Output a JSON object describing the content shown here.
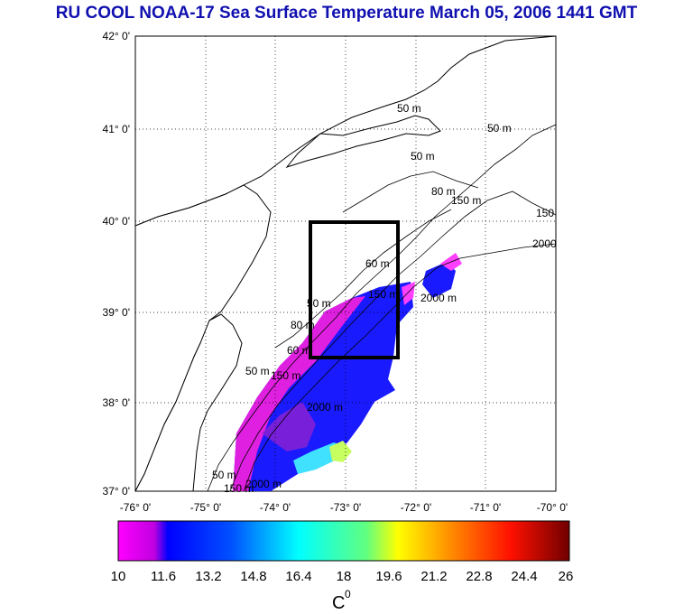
{
  "title": "RU COOL  NOAA-17 Sea Surface Temperature March 05, 2006 1441 GMT",
  "map": {
    "lat_labels": [
      "42° 0'",
      "41° 0'",
      "40° 0'",
      "39° 0'",
      "38° 0'",
      "37° 0'"
    ],
    "lon_labels": [
      "-76° 0'",
      "-75° 0'",
      "-74° 0'",
      "-73° 0'",
      "-72° 0'",
      "-71° 0'",
      "-70° 0'"
    ],
    "isobath_labels": [
      "50 m",
      "50 m",
      "50 m",
      "80 m",
      "150 m",
      "150",
      "2000",
      "60 m",
      "150 m",
      "2000 m",
      "50 m",
      "80 m",
      "50 m",
      "2000 m",
      "50 m",
      "150 m",
      "150 m",
      "60 m",
      "2000 m"
    ],
    "box_color": "#000000",
    "land_color": "#ffffff"
  },
  "colorbar": {
    "ticks": [
      "10",
      "11.6",
      "13.2",
      "14.8",
      "16.4",
      "18",
      "19.6",
      "21.2",
      "22.8",
      "24.4",
      "26"
    ],
    "unit": "C",
    "unit_sup": "0",
    "range": [
      10,
      26
    ]
  }
}
